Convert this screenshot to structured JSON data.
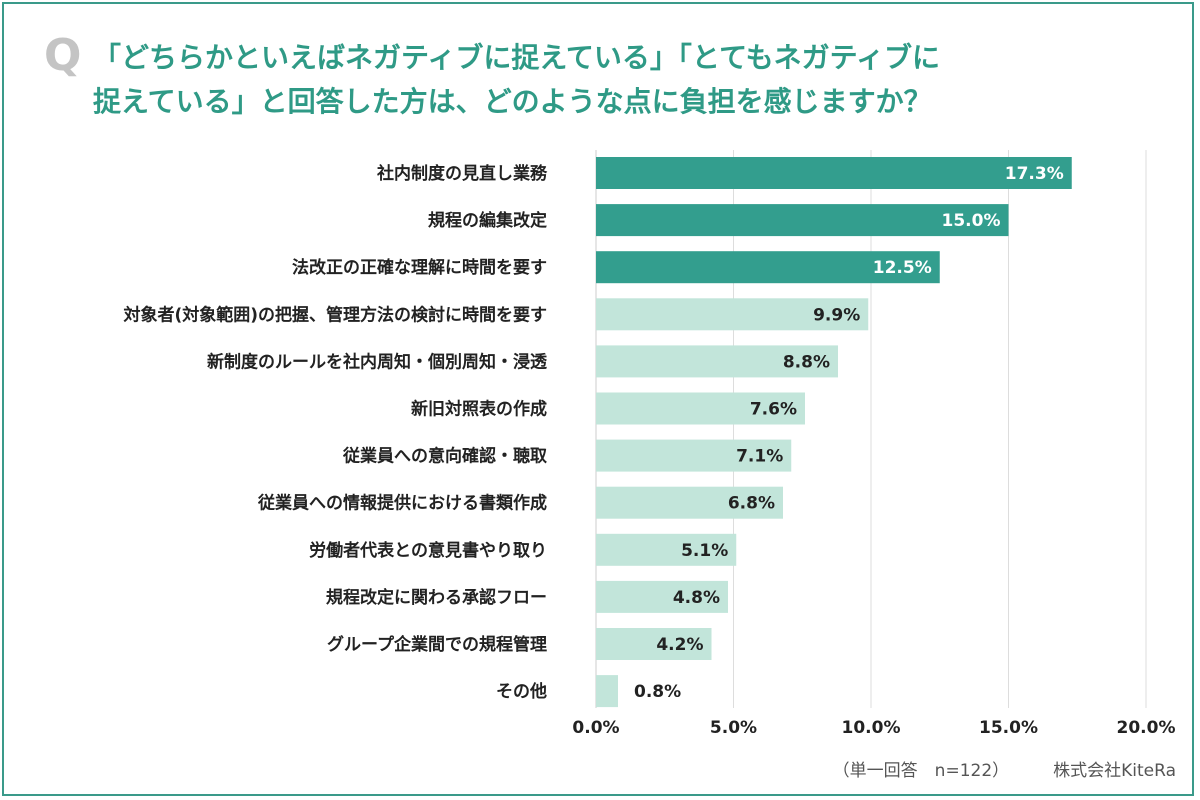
{
  "question_mark": "Q",
  "title": {
    "line1": "「どちらかといえばネガティブに捉えている」「とてもネガティブに",
    "line2": "捉えている」と回答した方は、どのような点に負担を感じますか？"
  },
  "footnote": {
    "sample": "（単一回答　n=122）",
    "company": "株式会社KiteRa"
  },
  "colors": {
    "accent": "#339e8e",
    "light": "#c2e5da",
    "border": "#3a9a8a",
    "title": "#2f9a86",
    "grid": "#dddddd"
  },
  "chart_data": {
    "type": "bar",
    "orientation": "horizontal",
    "categories": [
      "社内制度の見直し業務",
      "規程の編集改定",
      "法改正の正確な理解に時間を要す",
      "対象者(対象範囲)の把握、管理方法の検討に時間を要す",
      "新制度のルールを社内周知・個別周知・浸透",
      "新旧対照表の作成",
      "従業員への意向確認・聴取",
      "従業員への情報提供における書類作成",
      "労働者代表との意見書やり取り",
      "規程改定に関わる承認フロー",
      "グループ企業間での規程管理",
      "その他"
    ],
    "values": [
      17.3,
      15.0,
      12.5,
      9.9,
      8.8,
      7.6,
      7.1,
      6.8,
      5.1,
      4.8,
      4.2,
      0.8
    ],
    "value_labels": [
      "17.3%",
      "15.0%",
      "12.5%",
      "9.9%",
      "8.8%",
      "7.6%",
      "7.1%",
      "6.8%",
      "5.1%",
      "4.8%",
      "4.2%",
      "0.8%"
    ],
    "highlighted_count": 3,
    "xlim": [
      0,
      20
    ],
    "xticks": [
      0,
      5,
      10,
      15,
      20
    ],
    "xtick_labels": [
      "0.0%",
      "5.0%",
      "10.0%",
      "15.0%",
      "20.0%"
    ],
    "grid": true
  }
}
